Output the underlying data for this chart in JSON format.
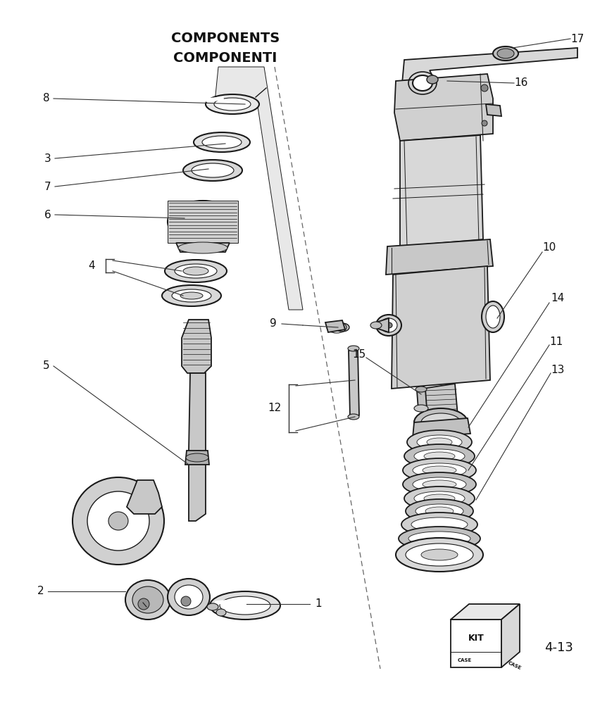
{
  "title_line1": "COMPONENTS",
  "title_line2": "COMPONENTI",
  "background_color": "#ffffff",
  "line_color": "#1a1a1a",
  "label_fontsize": 11,
  "kit_label": "KIT",
  "kit_number": "4-13",
  "figw": 8.52,
  "figh": 10.0,
  "dpi": 100,
  "lw_main": 1.3,
  "lw_thin": 0.7,
  "lw_thick": 2.2
}
